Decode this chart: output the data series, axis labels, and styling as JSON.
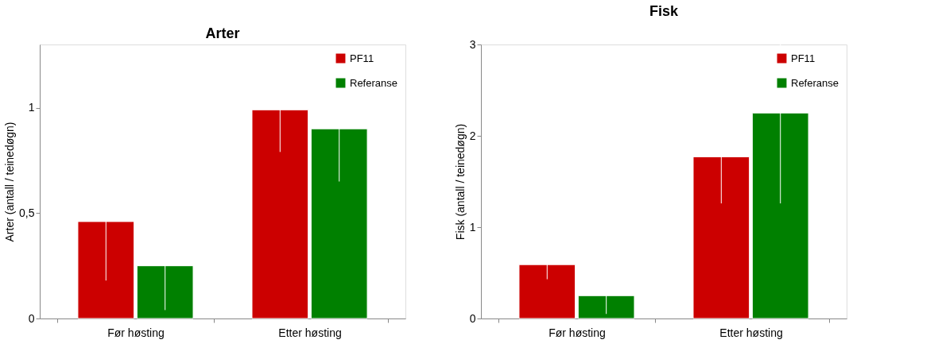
{
  "chart_data": [
    {
      "type": "bar",
      "title": "Arter",
      "ylabel": "Arter  (antall / teinedøgn)",
      "categories": [
        "Før høsting",
        "Etter høsting"
      ],
      "series": [
        {
          "name": "PF11",
          "color": "#cc0000",
          "values": [
            0.46,
            0.99
          ],
          "errors": [
            0.28,
            0.2
          ]
        },
        {
          "name": "Referanse",
          "color": "#008000",
          "values": [
            0.25,
            0.9
          ],
          "errors": [
            0.21,
            0.25
          ]
        }
      ],
      "ylim": [
        0,
        1.3
      ],
      "yticks": [
        0,
        {
          "value": 0.5,
          "label": "0,5"
        },
        1
      ],
      "grid": false,
      "legend": "top right"
    },
    {
      "type": "bar",
      "title": "Fisk",
      "ylabel": "Fisk  (antall / teinedøgn)",
      "categories": [
        "Før høsting",
        "Etter høsting"
      ],
      "series": [
        {
          "name": "PF11",
          "color": "#cc0000",
          "values": [
            0.59,
            1.77
          ],
          "errors": [
            0.16,
            0.51
          ]
        },
        {
          "name": "Referanse",
          "color": "#008000",
          "values": [
            0.25,
            2.25
          ],
          "errors": [
            0.2,
            0.99
          ]
        }
      ],
      "ylim": [
        0,
        3
      ],
      "yticks": [
        0,
        1,
        2,
        3
      ],
      "grid": false,
      "legend": "top right"
    }
  ]
}
